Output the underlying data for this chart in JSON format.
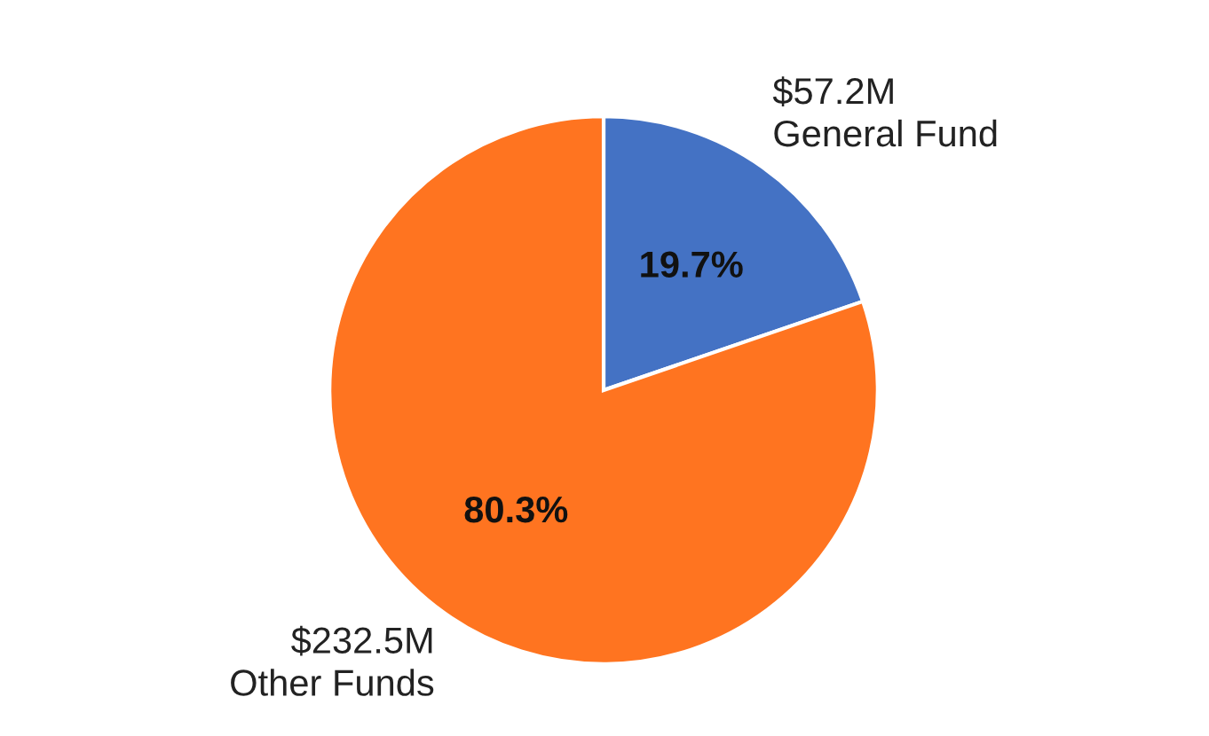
{
  "chart_data": {
    "type": "pie",
    "categories": [
      "General Fund",
      "Other Funds"
    ],
    "values": [
      57.2,
      232.5
    ],
    "colors": [
      "#4472c4",
      "#ff7420"
    ],
    "value_labels": [
      "$57.2M",
      "$232.5M"
    ],
    "annotations": [
      {
        "text": "19.7%",
        "x": "General Fund"
      },
      {
        "text": "80.3%",
        "x": "Other Funds"
      }
    ],
    "legend": false
  }
}
